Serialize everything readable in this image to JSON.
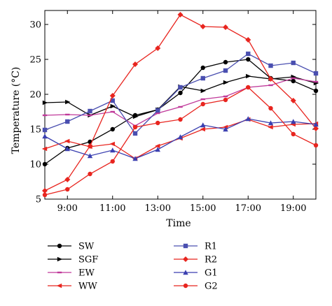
{
  "chart_data": {
    "type": "line",
    "title": "",
    "xlabel": "Time",
    "ylabel": "Temperature (°C)",
    "xlim": [
      8,
      20
    ],
    "ylim": [
      5,
      32
    ],
    "x": [
      8,
      9,
      10,
      11,
      12,
      13,
      14,
      15,
      16,
      17,
      18,
      19,
      20
    ],
    "x_ticks": [
      {
        "value": 9,
        "label": "9:00"
      },
      {
        "value": 11,
        "label": "11:00"
      },
      {
        "value": 13,
        "label": "13:00"
      },
      {
        "value": 15,
        "label": "15:00"
      },
      {
        "value": 17,
        "label": "17:00"
      },
      {
        "value": 19,
        "label": "19:00"
      }
    ],
    "y_ticks": [
      {
        "value": 5,
        "label": "5"
      },
      {
        "value": 10,
        "label": "10"
      },
      {
        "value": 15,
        "label": "15"
      },
      {
        "value": 20,
        "label": "20"
      },
      {
        "value": 25,
        "label": "25"
      },
      {
        "value": 30,
        "label": "30"
      }
    ],
    "grid": false,
    "legend_position": "below",
    "series": [
      {
        "name": "SW",
        "color": "#000000",
        "marker": "circle",
        "values": [
          10.0,
          12.3,
          13.2,
          15.0,
          17.0,
          17.8,
          20.2,
          23.8,
          24.6,
          25.0,
          22.3,
          21.9,
          20.5
        ]
      },
      {
        "name": "SGF",
        "color": "#000000",
        "marker": "tri-right",
        "values": [
          18.8,
          18.9,
          17.0,
          18.3,
          16.8,
          17.8,
          21.1,
          20.5,
          21.7,
          22.6,
          22.2,
          22.5,
          21.6
        ]
      },
      {
        "name": "EW",
        "color": "#c0399a",
        "marker": "dash",
        "values": [
          17.0,
          17.1,
          17.0,
          17.5,
          15.5,
          17.3,
          18.2,
          19.3,
          19.7,
          21.0,
          21.3,
          22.3,
          21.8
        ]
      },
      {
        "name": "WW",
        "color": "#e8251f",
        "marker": "tri-left",
        "values": [
          12.2,
          13.3,
          12.5,
          12.9,
          10.8,
          12.6,
          13.7,
          15.0,
          15.3,
          16.4,
          15.3,
          15.7,
          15.8
        ]
      },
      {
        "name": "R1",
        "color": "#4a4fb0",
        "marker": "square",
        "values": [
          14.9,
          16.1,
          17.6,
          19.1,
          14.4,
          17.7,
          21.0,
          22.3,
          23.4,
          25.8,
          24.1,
          24.5,
          23.0
        ]
      },
      {
        "name": "R2",
        "color": "#e8251f",
        "marker": "diamond",
        "values": [
          6.2,
          7.8,
          12.6,
          19.8,
          24.3,
          26.6,
          31.4,
          29.7,
          29.6,
          27.8,
          22.2,
          19.1,
          15.1
        ]
      },
      {
        "name": "G1",
        "color": "#3a3fb0",
        "marker": "triangle",
        "values": [
          14.0,
          12.2,
          11.2,
          12.0,
          10.8,
          12.1,
          13.9,
          15.6,
          15.0,
          16.5,
          15.9,
          16.1,
          15.7
        ]
      },
      {
        "name": "G2",
        "color": "#e8251f",
        "marker": "circle",
        "values": [
          5.6,
          6.4,
          8.6,
          10.4,
          15.3,
          15.9,
          16.4,
          18.6,
          19.2,
          21.0,
          18.0,
          14.3,
          12.7
        ]
      }
    ]
  }
}
